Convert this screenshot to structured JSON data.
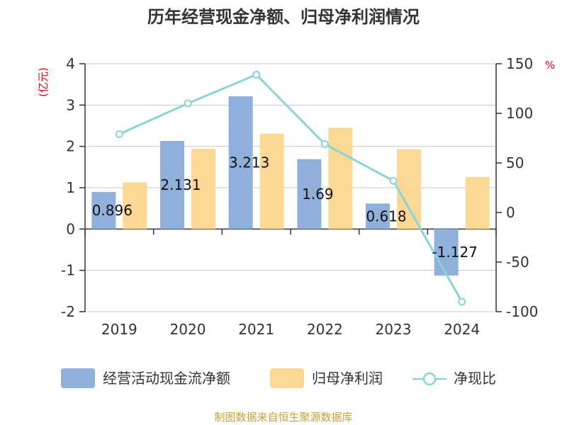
{
  "title": "历年经营现金净额、归母净利润情况",
  "source": "制图数据来自恒生聚源数据库",
  "chart_data": {
    "type": "bar",
    "title": "历年经营现金净额、归母净利润情况",
    "categories": [
      "2019",
      "2020",
      "2021",
      "2022",
      "2023",
      "2024"
    ],
    "y_left": {
      "unit": "(亿元)",
      "ylim": [
        -2,
        4
      ],
      "ticks": [
        "-2",
        "-1",
        "0",
        "1",
        "2",
        "3",
        "4"
      ]
    },
    "y_right": {
      "unit": "%",
      "ylim": [
        -100,
        150
      ],
      "ticks": [
        "-100",
        "-50",
        "0",
        "50",
        "100",
        "150"
      ]
    },
    "grid": true,
    "legend_position": "bottom",
    "series": [
      {
        "name": "经营活动现金流净额",
        "type": "bar",
        "axis": "left",
        "color": "#8eb0db",
        "values": [
          0.896,
          2.131,
          3.213,
          1.69,
          0.618,
          -1.127
        ],
        "labels": [
          "0.896",
          "2.131",
          "3.213",
          "1.69",
          "0.618",
          "-1.127"
        ]
      },
      {
        "name": "归母净利润",
        "type": "bar",
        "axis": "left",
        "color": "#fdd895",
        "values": [
          1.13,
          1.94,
          2.31,
          2.45,
          1.93,
          1.26
        ]
      },
      {
        "name": "净现比",
        "type": "line",
        "axis": "right",
        "color": "#88d4d8",
        "values": [
          79,
          110,
          139,
          69,
          32,
          -90
        ]
      }
    ]
  }
}
